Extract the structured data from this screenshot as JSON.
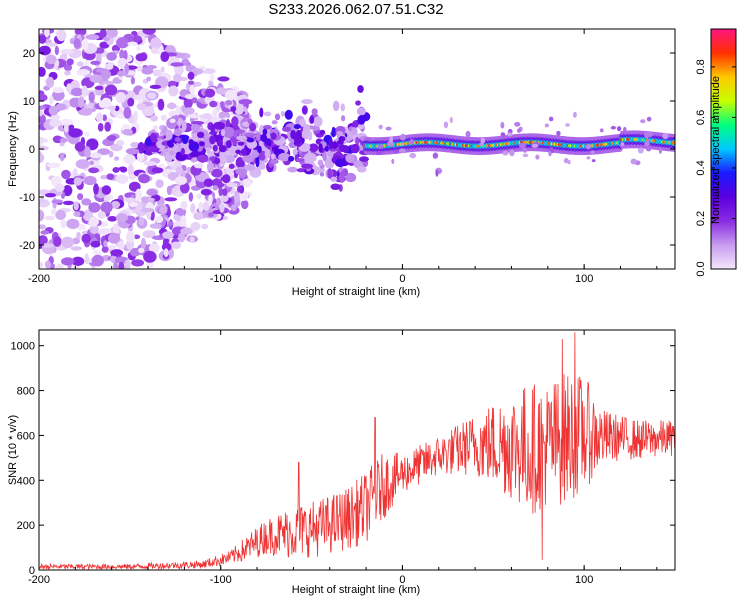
{
  "title": "S233.2026.062.07.51.C32",
  "chart_data": [
    {
      "type": "heatmap",
      "xlabel": "Height of straight line (km)",
      "ylabel": "Frequency (Hz)",
      "xlim": [
        -200,
        150
      ],
      "ylim": [
        -25,
        25
      ],
      "xticks": [
        -200,
        -100,
        0,
        100
      ],
      "xtick_labels": [
        "-200",
        "-100",
        "0",
        "100"
      ],
      "yticks": [
        -20,
        -10,
        0,
        10,
        20
      ],
      "ytick_labels": [
        "-20",
        "-10",
        "0",
        "10",
        "20"
      ],
      "colorbar": {
        "label": "Normalized spectral amplitude",
        "range": [
          0,
          0.95
        ],
        "ticks": [
          0,
          0.2,
          0.4,
          0.6,
          0.8
        ],
        "tick_labels": [
          "0.0",
          "0.2",
          "0.4",
          "0.6",
          "0.8"
        ],
        "colormap": "rainbow",
        "colors": [
          "#f4e8fb",
          "#c89cf0",
          "#8a2be2",
          "#5a00e0",
          "#1a1aff",
          "#00c8ff",
          "#00ff80",
          "#c8ff00",
          "#ffc800",
          "#ff3000",
          "#ff1480"
        ]
      },
      "regions": [
        {
          "x_range": [
            -200,
            -110
          ],
          "f_range": [
            -25,
            25
          ],
          "level": 0.05,
          "note": "diffuse scattered noise"
        },
        {
          "x_range": [
            -140,
            -20
          ],
          "f_range": [
            -8,
            8
          ],
          "level": 0.15,
          "note": "fragmented band"
        },
        {
          "x_range": [
            -20,
            150
          ],
          "f_center_range": [
            0,
            2
          ],
          "level": 0.8,
          "note": "coherent narrow band"
        }
      ]
    },
    {
      "type": "line",
      "xlabel": "Height of straight line (km)",
      "ylabel": "SNR (10 * v/v)",
      "xlim": [
        -200,
        150
      ],
      "ylim": [
        0,
        1070
      ],
      "xticks": [
        -200,
        -100,
        0,
        100
      ],
      "xtick_labels": [
        "-200",
        "-100",
        "0",
        "100"
      ],
      "yticks": [
        0,
        200,
        400,
        600,
        800,
        1000
      ],
      "ytick_labels": [
        "0",
        "200",
        "400",
        "600",
        "800",
        "1000"
      ],
      "color": "#ee3333",
      "envelope": {
        "x": [
          -200,
          -150,
          -110,
          -95,
          -85,
          -75,
          -60,
          -45,
          -30,
          -20,
          -10,
          0,
          20,
          40,
          60,
          70,
          80,
          90,
          100,
          110,
          120,
          130,
          150
        ],
        "mean": [
          15,
          15,
          25,
          55,
          100,
          150,
          170,
          190,
          230,
          280,
          380,
          430,
          510,
          560,
          560,
          540,
          560,
          590,
          610,
          590,
          590,
          580,
          590
        ],
        "amp": [
          12,
          12,
          18,
          30,
          60,
          80,
          120,
          130,
          140,
          160,
          150,
          90,
          90,
          140,
          250,
          300,
          280,
          300,
          260,
          130,
          100,
          90,
          80
        ]
      },
      "peaks": [
        {
          "x": -57,
          "y": 480
        },
        {
          "x": -15,
          "y": 680
        },
        {
          "x": 88,
          "y": 1030
        },
        {
          "x": 95,
          "y": 1060
        },
        {
          "x": 77,
          "y": 45
        }
      ]
    }
  ]
}
